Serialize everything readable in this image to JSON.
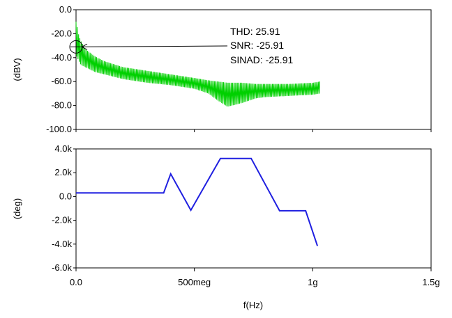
{
  "chart_data": [
    {
      "type": "line",
      "title": "",
      "ylabel": "(dBV)",
      "xlabel": "",
      "xlim": [
        0,
        1500000000
      ],
      "ylim": [
        -100,
        0
      ],
      "yticks": [
        0,
        -20,
        -40,
        -60,
        -80,
        -100
      ],
      "ytick_labels": [
        "0.0",
        "-20.0",
        "-40.0",
        "-60.0",
        "-80.0",
        "-100.0"
      ],
      "xticks": [
        0,
        500000000,
        1000000000,
        1500000000
      ],
      "grid": false,
      "series_color": "#00d000",
      "series": [
        {
          "x": [
            0,
            5000000,
            10000000,
            20000000,
            40000000,
            80000000,
            120000000,
            200000000,
            300000000,
            400000000,
            500000000,
            560000000,
            600000000,
            640000000,
            700000000,
            760000000,
            800000000,
            900000000,
            1000000000,
            1030000000
          ],
          "top": [
            -10,
            -14,
            -20,
            -26,
            -33,
            -39,
            -43,
            -48,
            -51,
            -54,
            -57,
            -59,
            -60,
            -61,
            -61,
            -62,
            -62,
            -62,
            -61,
            -60
          ],
          "bottom": [
            -38,
            -40,
            -42,
            -46,
            -48,
            -52,
            -54,
            -58,
            -61,
            -63,
            -66,
            -70,
            -76,
            -81,
            -78,
            -74,
            -73,
            -72,
            -71,
            -70
          ]
        }
      ],
      "annotations": {
        "thd": "THD: 25.91",
        "snr": "SNR: -25.91",
        "sinad": "SINAD: -25.91",
        "marker_x": 0,
        "marker_y": -31
      }
    },
    {
      "type": "line",
      "title": "",
      "ylabel": "(deg)",
      "xlabel": "f(Hz)",
      "xlim": [
        0,
        1500000000
      ],
      "ylim": [
        -6000,
        4000
      ],
      "yticks": [
        4000,
        2000,
        0,
        -2000,
        -4000,
        -6000
      ],
      "ytick_labels": [
        "4.0k",
        "2.0k",
        "0.0",
        "-2.0k",
        "-4.0k",
        "-6.0k"
      ],
      "xticks": [
        0,
        500000000,
        1000000000,
        1500000000
      ],
      "xtick_labels": [
        "0.0",
        "500meg",
        "1g",
        "1.5g"
      ],
      "grid": false,
      "series_color": "#1f1fe0",
      "series": [
        {
          "x": [
            0,
            370000000,
            400000000,
            485000000,
            610000000,
            740000000,
            860000000,
            970000000,
            1020000000
          ],
          "y": [
            300,
            300,
            1900,
            -1150,
            3200,
            3200,
            -1200,
            -1200,
            -4150
          ]
        }
      ]
    }
  ]
}
